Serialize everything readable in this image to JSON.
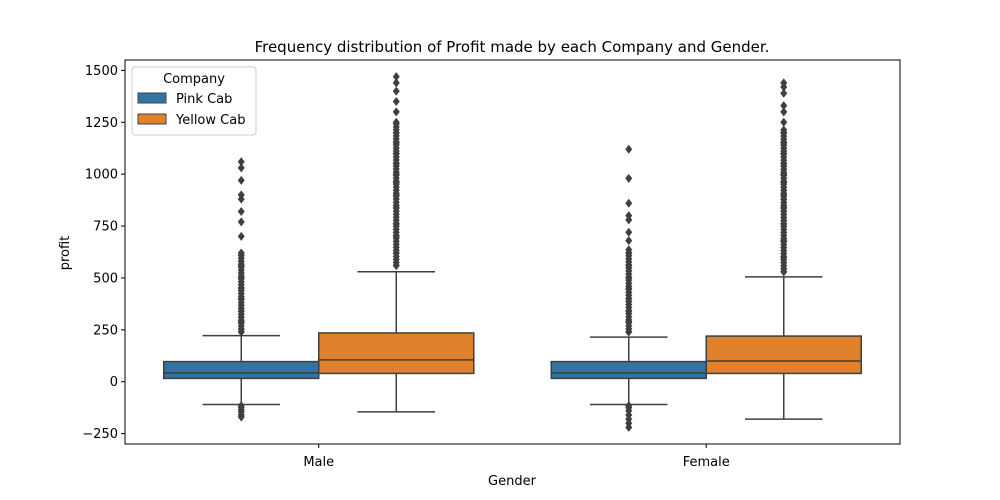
{
  "chart_data": {
    "type": "box",
    "title": "Frequency distribution of Profit made by each Company and Gender.",
    "xlabel": "Gender",
    "ylabel": "profit",
    "categories": [
      "Male",
      "Female"
    ],
    "ylim": [
      -300,
      1550
    ],
    "yticks": [
      -250,
      0,
      250,
      500,
      750,
      1000,
      1250,
      1500
    ],
    "ytick_labels": [
      "−250",
      "0",
      "250",
      "500",
      "750",
      "1000",
      "1250",
      "1500"
    ],
    "legend": {
      "title": "Company",
      "placement": "top-left"
    },
    "series": [
      {
        "name": "Pink Cab",
        "color": "#3274a1",
        "boxes": [
          {
            "category": "Male",
            "q1": 16,
            "median": 42,
            "q3": 97,
            "whisker_low": -110,
            "whisker_high": 222,
            "outliers_low": [
              -115,
              -125,
              -135,
              -145,
              -160,
              -170
            ],
            "outliers_high": [
              240,
              290,
              340,
              400,
              450,
              500,
              560,
              620,
              700,
              770,
              820,
              880,
              900,
              970,
              1030,
              1060
            ]
          },
          {
            "category": "Female",
            "q1": 16,
            "median": 42,
            "q3": 97,
            "whisker_low": -110,
            "whisker_high": 215,
            "outliers_low": [
              -115,
              -125,
              -140,
              -160,
              -180,
              -200,
              -220
            ],
            "outliers_high": [
              240,
              290,
              340,
              400,
              450,
              500,
              560,
              620,
              680,
              720,
              780,
              800,
              860,
              980,
              1120
            ]
          }
        ]
      },
      {
        "name": "Yellow Cab",
        "color": "#e1812c",
        "boxes": [
          {
            "category": "Male",
            "q1": 40,
            "median": 105,
            "q3": 235,
            "whisker_low": -145,
            "whisker_high": 530,
            "outliers_low": [],
            "outliers_high": [
              560,
              620,
              700,
              760,
              840,
              900,
              960,
              1000,
              1050,
              1100,
              1150,
              1200,
              1250,
              1300,
              1350,
              1400,
              1440,
              1470
            ]
          },
          {
            "category": "Female",
            "q1": 40,
            "median": 100,
            "q3": 220,
            "whisker_low": -180,
            "whisker_high": 505,
            "outliers_low": [],
            "outliers_high": [
              530,
              600,
              680,
              760,
              840,
              900,
              960,
              1000,
              1050,
              1100,
              1150,
              1200,
              1250,
              1300,
              1330,
              1390,
              1420,
              1440
            ]
          }
        ]
      }
    ]
  }
}
